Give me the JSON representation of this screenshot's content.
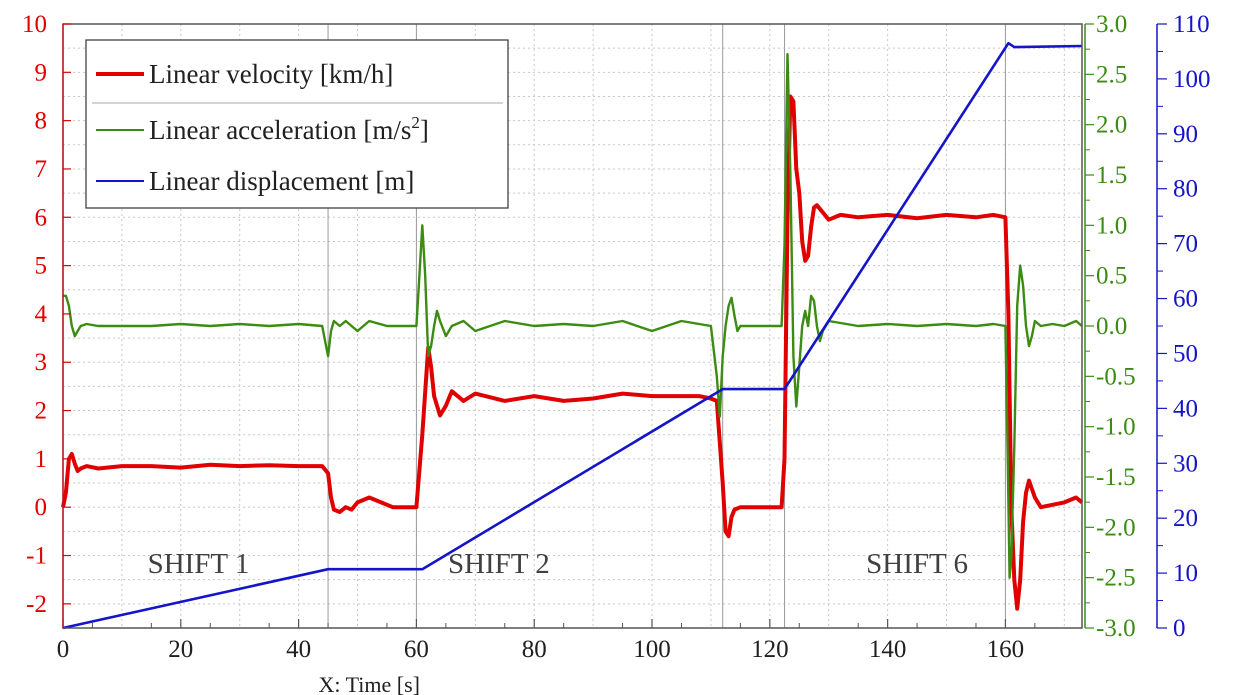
{
  "chart_data": {
    "type": "line",
    "title": "",
    "xlabel": "X: Time [s]",
    "xlim": [
      0,
      173
    ],
    "x_ticks": [
      "0",
      "20",
      "40",
      "60",
      "80",
      "100",
      "120",
      "140",
      "160"
    ],
    "y_axes": [
      {
        "id": "left",
        "side": "left",
        "color": "#e00000",
        "ylim": [
          -2.5,
          10
        ],
        "ticks": [
          "-2",
          "-1",
          "0",
          "1",
          "2",
          "3",
          "4",
          "5",
          "6",
          "7",
          "8",
          "9",
          "10"
        ]
      },
      {
        "id": "right1",
        "side": "right",
        "color": "#3c8c14",
        "ylim": [
          -3.0,
          3.0
        ],
        "ticks": [
          "-3.0",
          "-2.5",
          "-2.0",
          "-1.5",
          "-1.0",
          "-0.5",
          "0.0",
          "0.5",
          "1.0",
          "1.5",
          "2.0",
          "2.5",
          "3.0"
        ]
      },
      {
        "id": "right2",
        "side": "right",
        "color": "#1414c8",
        "ylim": [
          0,
          110
        ],
        "ticks": [
          "0",
          "10",
          "20",
          "30",
          "40",
          "50",
          "60",
          "70",
          "80",
          "90",
          "100",
          "110"
        ]
      }
    ],
    "series": [
      {
        "name": "Linear velocity [km/h]",
        "color": "#e00000",
        "axis": "left",
        "x": [
          0,
          0.5,
          1,
          1.5,
          2,
          2.5,
          3,
          4,
          6,
          10,
          15,
          20,
          25,
          30,
          35,
          40,
          44,
          45,
          45.5,
          46,
          47,
          48,
          49,
          50,
          52,
          54,
          56,
          58,
          60,
          61,
          62,
          62.5,
          63,
          64,
          65,
          66,
          68,
          70,
          75,
          80,
          85,
          90,
          95,
          100,
          105,
          108,
          110,
          111,
          112,
          112.5,
          113,
          113.5,
          114,
          115,
          116,
          118,
          120,
          122,
          122.5,
          123,
          123.5,
          124,
          124.5,
          125,
          125.5,
          126,
          126.5,
          127,
          127.5,
          128,
          129,
          130,
          132,
          135,
          140,
          145,
          150,
          155,
          158,
          160,
          160.5,
          161,
          161.5,
          162,
          162.5,
          163,
          163.5,
          164,
          165,
          166,
          168,
          170,
          172,
          173
        ],
        "values": [
          0,
          0.3,
          1.0,
          1.1,
          0.9,
          0.75,
          0.8,
          0.85,
          0.8,
          0.85,
          0.85,
          0.82,
          0.88,
          0.85,
          0.87,
          0.85,
          0.85,
          0.7,
          0.2,
          -0.05,
          -0.1,
          0.0,
          -0.05,
          0.1,
          0.2,
          0.1,
          0.0,
          0.0,
          0.0,
          1.5,
          3.3,
          2.9,
          2.3,
          1.9,
          2.1,
          2.4,
          2.2,
          2.35,
          2.2,
          2.3,
          2.2,
          2.25,
          2.35,
          2.3,
          2.3,
          2.3,
          2.25,
          2.2,
          0.5,
          -0.5,
          -0.6,
          -0.2,
          -0.05,
          0.0,
          0.0,
          0.0,
          0.0,
          0.0,
          1.0,
          6.0,
          8.5,
          8.4,
          7.0,
          6.5,
          5.5,
          5.1,
          5.2,
          5.8,
          6.2,
          6.25,
          6.1,
          5.95,
          6.05,
          6.0,
          6.05,
          5.98,
          6.05,
          6.0,
          6.05,
          6.0,
          4.0,
          0.0,
          -1.5,
          -2.1,
          -1.5,
          -0.3,
          0.3,
          0.55,
          0.2,
          0.0,
          0.05,
          0.1,
          0.2,
          0.1
        ]
      },
      {
        "name": "Linear acceleration [m/s²]",
        "color": "#3c8c14",
        "axis": "right1",
        "x": [
          0,
          0.5,
          1,
          1.5,
          2,
          2.5,
          3,
          4,
          6,
          10,
          15,
          20,
          25,
          30,
          35,
          40,
          44,
          44.5,
          45,
          45.5,
          46,
          47,
          48,
          50,
          52,
          55,
          58,
          60,
          60.5,
          61,
          61.5,
          62,
          62.5,
          63,
          63.5,
          64,
          65,
          66,
          68,
          70,
          75,
          80,
          85,
          90,
          95,
          100,
          105,
          110,
          111,
          111.5,
          112,
          112.5,
          113,
          113.5,
          114,
          114.5,
          115,
          116,
          118,
          120,
          122,
          122.5,
          123,
          123.5,
          124,
          124.5,
          125,
          125.5,
          126,
          126.5,
          127,
          127.5,
          128,
          128.5,
          129,
          130,
          135,
          140,
          145,
          150,
          155,
          158,
          160,
          160.3,
          160.7,
          161,
          161.5,
          162,
          162.5,
          163,
          163.5,
          164,
          164.5,
          165,
          166,
          168,
          170,
          172,
          173
        ],
        "values": [
          0.3,
          0.3,
          0.2,
          0.0,
          -0.1,
          -0.05,
          0.0,
          0.02,
          0.0,
          0.0,
          0.0,
          0.02,
          0.0,
          0.02,
          0.0,
          0.02,
          0.0,
          -0.15,
          -0.3,
          -0.05,
          0.05,
          0.0,
          0.05,
          -0.05,
          0.05,
          0.0,
          0.0,
          0.0,
          0.5,
          1.0,
          0.5,
          -0.3,
          -0.2,
          0.0,
          0.15,
          0.05,
          -0.1,
          0.0,
          0.05,
          -0.05,
          0.05,
          0.0,
          0.02,
          0.0,
          0.05,
          -0.05,
          0.05,
          0.0,
          -0.5,
          -0.9,
          -0.3,
          0.0,
          0.2,
          0.28,
          0.1,
          -0.05,
          0.0,
          0.0,
          0.0,
          0.0,
          0.0,
          0.8,
          2.7,
          1.5,
          -0.3,
          -0.8,
          -0.4,
          0.0,
          0.15,
          0.0,
          0.3,
          0.25,
          0.0,
          -0.15,
          -0.05,
          0.05,
          0.0,
          0.02,
          0.0,
          0.02,
          0.0,
          0.02,
          0.0,
          -1.0,
          -2.5,
          -2.3,
          -1.2,
          0.2,
          0.6,
          0.4,
          0.0,
          -0.2,
          -0.1,
          0.05,
          0.0,
          0.02,
          0.0,
          0.05,
          0.0
        ]
      },
      {
        "name": "Linear displacement [m]",
        "color": "#1414c8",
        "axis": "right2",
        "x": [
          0,
          45,
          61,
          112,
          122.5,
          160.5,
          161.5,
          173
        ],
        "values": [
          0,
          10.7,
          10.7,
          43.5,
          43.5,
          106.5,
          105.8,
          106
        ]
      }
    ],
    "annotations": [
      {
        "text": "SHIFT 1",
        "x": 23,
        "y": -1.15
      },
      {
        "text": "SHIFT 2",
        "x": 74,
        "y": -1.15
      },
      {
        "text": "SHIFT 6",
        "x": 145,
        "y": -1.15
      }
    ],
    "vlines": [
      45,
      60,
      112,
      122.5,
      160
    ],
    "legend": {
      "placement": "top-left",
      "entries": [
        "Linear velocity [km/h]",
        "Linear acceleration [m/s",
        "Linear displacement [m]"
      ],
      "acc_unit_tail": "]",
      "acc_superscript": "2"
    },
    "grid": true
  }
}
